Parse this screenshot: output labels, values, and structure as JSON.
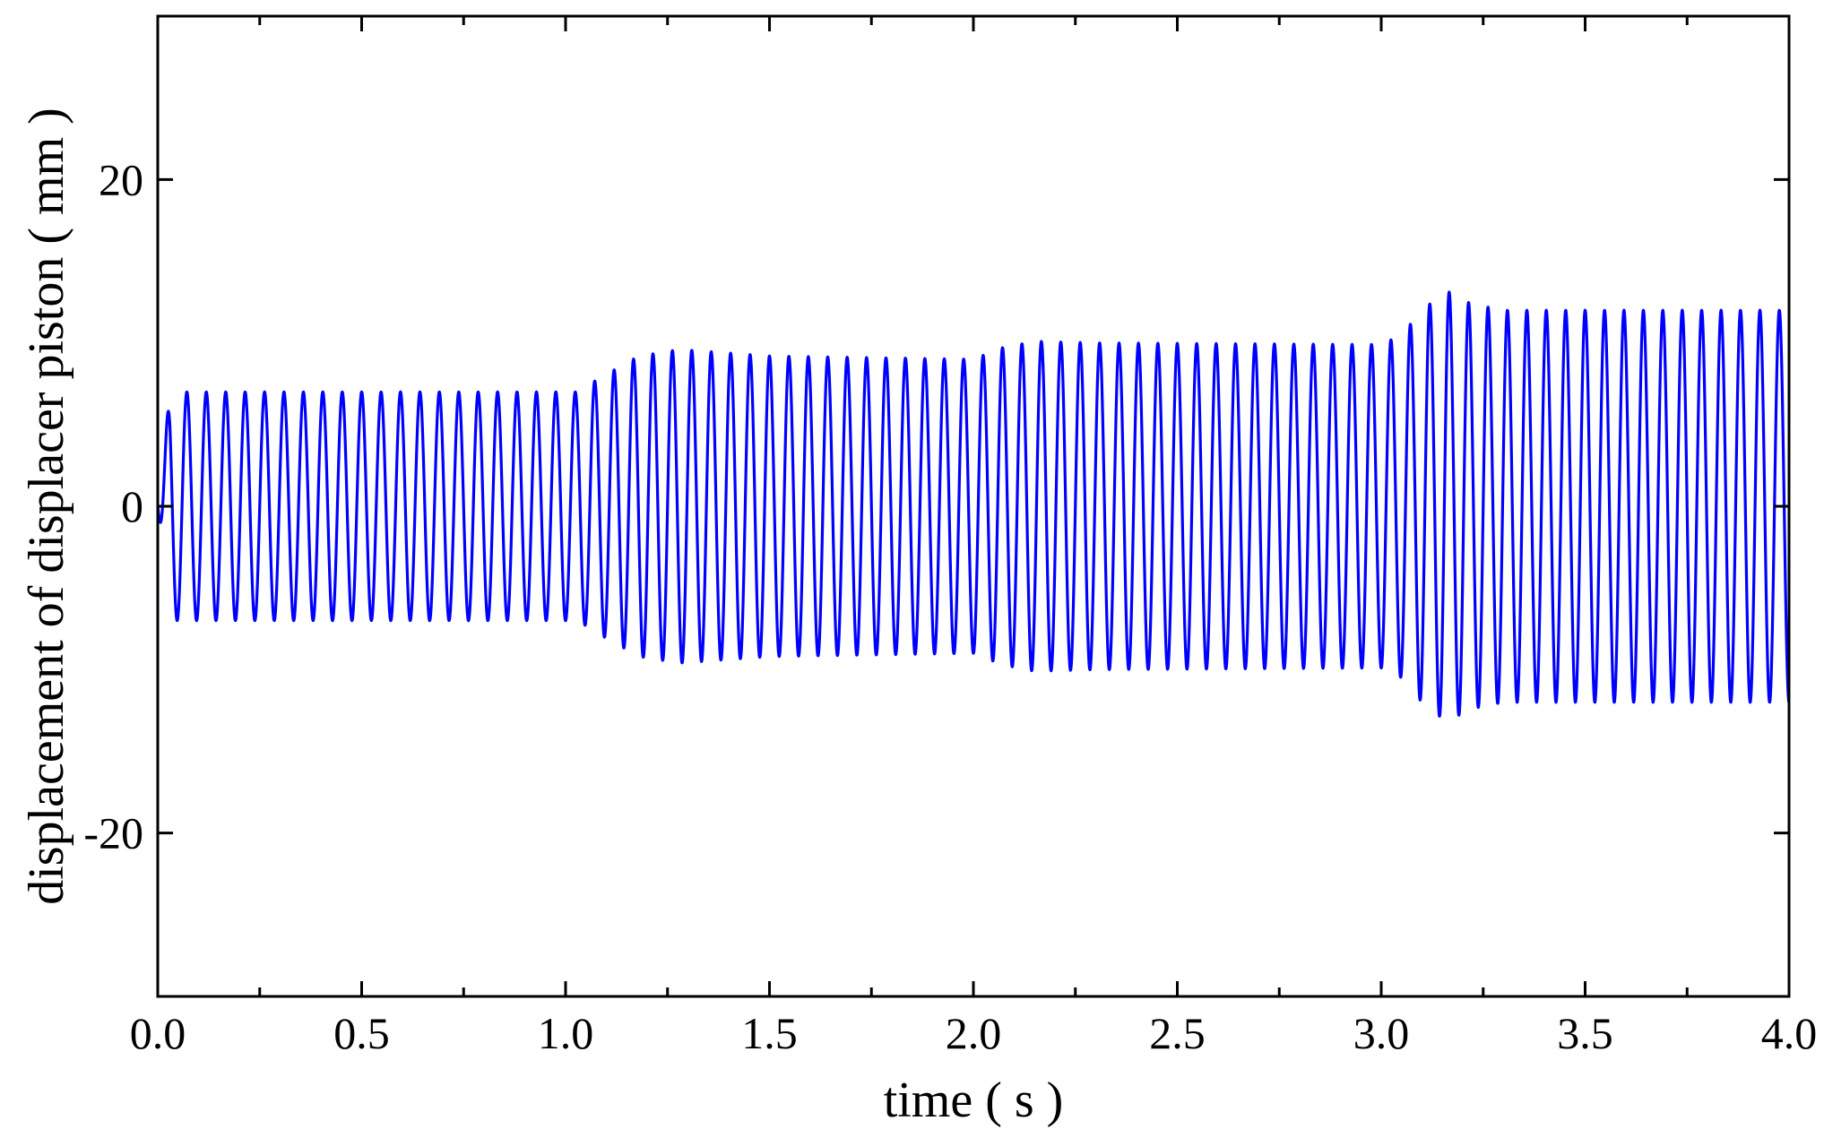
{
  "chart_data": {
    "type": "line",
    "title": "",
    "xlabel": "time ( s )",
    "ylabel": "displacement of displacer piston ( mm )",
    "xlim": [
      0.0,
      4.0
    ],
    "ylim": [
      -30,
      30
    ],
    "x_ticks": [
      0.0,
      0.5,
      1.0,
      1.5,
      2.0,
      2.5,
      3.0,
      3.5,
      4.0
    ],
    "x_tick_labels": [
      "0.0",
      "0.5",
      "1.0",
      "1.5",
      "2.0",
      "2.5",
      "3.0",
      "3.5",
      "4.0"
    ],
    "x_minor_ticks": [
      0.25,
      0.75,
      1.25,
      1.75,
      2.25,
      2.75,
      3.25,
      3.75
    ],
    "y_ticks": [
      -20,
      0,
      20
    ],
    "y_tick_labels": [
      "-20",
      "0",
      "20"
    ],
    "grid": false,
    "legend": "none",
    "series": [
      {
        "color": "#0000ff",
        "frequency_hz": 21,
        "amplitude_envelope": {
          "t": [
            0.0,
            0.03,
            1.03,
            1.08,
            1.18,
            1.28,
            1.5,
            2.0,
            2.07,
            2.15,
            2.3,
            3.0,
            3.05,
            3.1,
            3.16,
            3.22,
            3.3,
            4.0
          ],
          "amplitude": [
            0,
            7,
            7,
            7.8,
            9.2,
            9.6,
            9.2,
            9.0,
            9.7,
            10.1,
            10.0,
            9.9,
            10.5,
            12.0,
            13.2,
            12.4,
            12.0,
            12.0
          ]
        }
      }
    ]
  }
}
